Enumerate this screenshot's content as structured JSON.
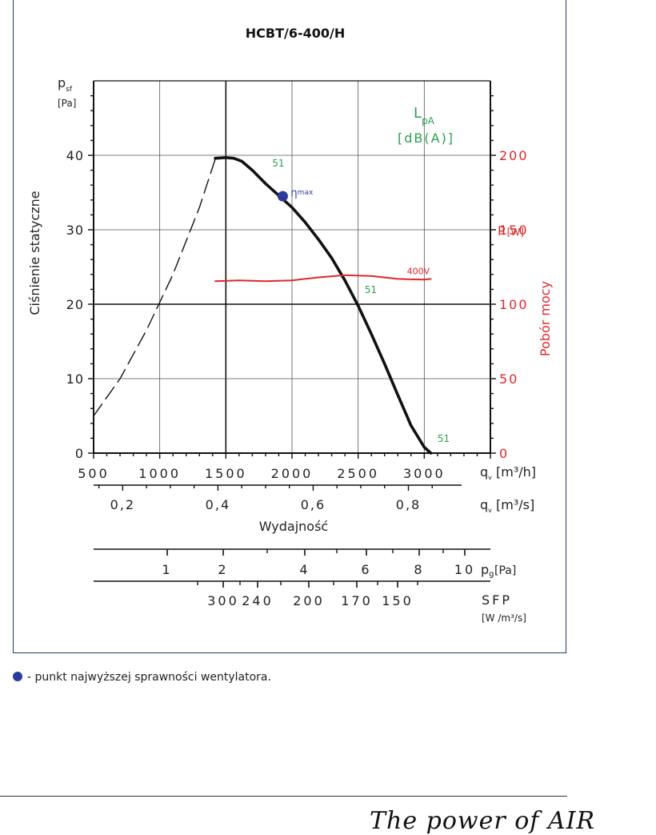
{
  "chart_data": {
    "type": "line",
    "title": "HCBT/6-400/H",
    "y_axis": {
      "symbol": "p",
      "sub": "sf",
      "unit": "[Pa]",
      "label": "Ciśnienie statyczne",
      "range": [
        0,
        50
      ],
      "ticks": [
        0,
        10,
        20,
        30,
        40
      ]
    },
    "x_axis": {
      "symbol": "q",
      "sub": "v",
      "unit": "[m³/h]",
      "range": [
        500,
        3500
      ],
      "ticks": [
        500,
        1000,
        1500,
        2000,
        2500,
        3000
      ],
      "tick_labels": [
        "500",
        "1000",
        "1500",
        "2000",
        "2500",
        "3000"
      ]
    },
    "x_axis_m3s": {
      "symbol": "q",
      "sub": "v",
      "unit": "[m³/s]",
      "ticks": [
        0.2,
        0.4,
        0.6,
        0.8
      ],
      "tick_labels": [
        "0,2",
        "0,4",
        "0,6",
        "0,8"
      ],
      "label": "Wydajność"
    },
    "right_axis": {
      "symbol": "P",
      "unit": "[W]",
      "label": "Pobór mocy",
      "range": [
        0,
        250
      ],
      "ticks": [
        0,
        50,
        100,
        150,
        200
      ],
      "tick_labels": [
        "0",
        "50",
        "100",
        "150",
        "200"
      ]
    },
    "lpa_label": {
      "symbol": "L",
      "sub": "pA",
      "unit": "[dB(A)]"
    },
    "grid": true,
    "series": [
      {
        "name": "",
        "style": "dashed",
        "x": [
          500,
          700,
          900,
          1100,
          1300,
          1420
        ],
        "y": [
          5,
          10,
          16.5,
          24,
          33,
          39.5
        ]
      },
      {
        "name": "",
        "style": "solid",
        "x": [
          1420,
          1500,
          1560,
          1620,
          1700,
          1800,
          1900,
          2000,
          2100,
          2200,
          2300,
          2400,
          2500,
          2600,
          2700,
          2800,
          2900,
          3000,
          3050
        ],
        "y": [
          39.6,
          39.7,
          39.6,
          39.2,
          38.0,
          36.2,
          34.6,
          33.0,
          31.0,
          28.7,
          26.2,
          23.2,
          19.8,
          16.0,
          12.0,
          7.8,
          3.7,
          0.8,
          0
        ]
      },
      {
        "name": "400V",
        "style": "solid",
        "axis": "right",
        "x": [
          1420,
          1600,
          1800,
          2000,
          2200,
          2400,
          2600,
          2800,
          3000,
          3050
        ],
        "y": [
          115.5,
          116.0,
          115.5,
          116.0,
          118.0,
          119.5,
          119.0,
          117.0,
          116.5,
          117.0
        ]
      }
    ],
    "lpa_values": [
      {
        "x": 1850,
        "y": 38.5,
        "label": "51"
      },
      {
        "x": 2550,
        "y": 21.5,
        "label": "51"
      },
      {
        "x": 3100,
        "y": 1.5,
        "label": "51"
      }
    ],
    "eta_max": {
      "x": 1930,
      "y": 34.5,
      "label": "η",
      "sub": "max"
    },
    "pg_axis": {
      "symbol": "p",
      "sub": "g",
      "unit": "[Pa]",
      "ticks": [
        1,
        2,
        4,
        6,
        8,
        10
      ],
      "tick_labels": [
        "1",
        "2",
        "4",
        "6",
        "8",
        "10"
      ]
    },
    "sfp_axis": {
      "label": "SFP",
      "unit": "[W /m³/s]",
      "ticks": [
        300,
        240,
        200,
        170,
        150
      ],
      "tick_labels": [
        "300",
        "240",
        "200",
        "170",
        "150"
      ]
    }
  },
  "legend_note": "- punkt najwyższej sprawności wentylatora.",
  "brand": "The power of AIR",
  "colors": {
    "pressure": "#111111",
    "power": "#e0262b",
    "lpa": "#2aa051",
    "eta": "#2c3a9c",
    "frame": "#1f3a6e"
  }
}
